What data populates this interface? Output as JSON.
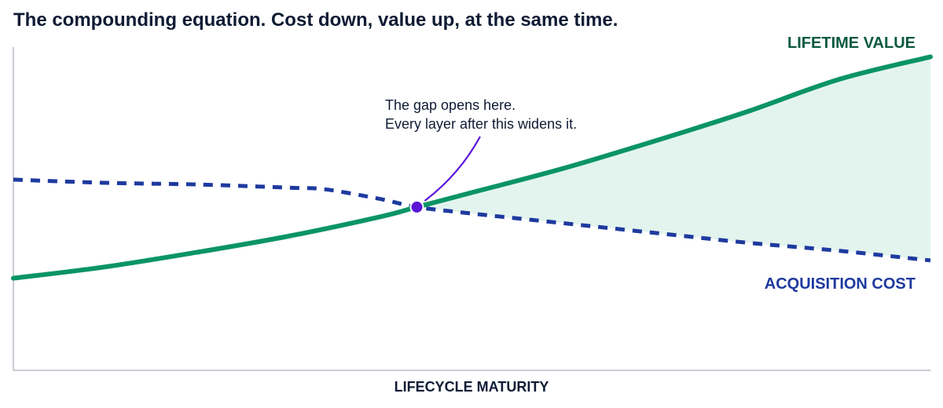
{
  "title": "The compounding equation. Cost down, value up, at the same time.",
  "chart_data": {
    "type": "line",
    "title": "The compounding equation. Cost down, value up, at the same time.",
    "xlabel": "LIFECYCLE MATURITY",
    "ylabel": "",
    "grid": false,
    "x_ticks": "none",
    "y_ticks": "none",
    "xlim": [
      0,
      100
    ],
    "ylim": [
      0,
      100
    ],
    "series": [
      {
        "name": "LIFETIME VALUE",
        "color": "#0a9466",
        "style": "solid",
        "x": [
          0,
          10,
          20,
          30,
          40,
          44,
          50,
          60,
          70,
          80,
          90,
          100
        ],
        "y": [
          28.5,
          32,
          36.5,
          41.5,
          47.5,
          50.5,
          55,
          62.5,
          71,
          80,
          90,
          97
        ]
      },
      {
        "name": "ACQUISITION COST",
        "color": "#1e3a9f",
        "style": "dashed",
        "x": [
          0,
          10,
          20,
          30,
          34,
          40,
          44,
          50,
          60,
          70,
          80,
          90,
          100
        ],
        "y": [
          59,
          58,
          57.5,
          56.5,
          56,
          53,
          50.5,
          48.5,
          45.5,
          42.5,
          39.5,
          37,
          34
        ]
      }
    ],
    "shaded_gap": {
      "between": [
        "LIFETIME VALUE",
        "ACQUISITION COST"
      ],
      "from_x": 44,
      "color": "#e3f4ee"
    },
    "annotation": {
      "lines": [
        "The gap opens here.",
        "Every layer after this widens it."
      ],
      "point": {
        "x": 44,
        "y": 50.5
      },
      "marker_color": "#5b16d6",
      "arrow_color": "#5b16d6"
    },
    "legend": "inline labels at right end of each line"
  }
}
